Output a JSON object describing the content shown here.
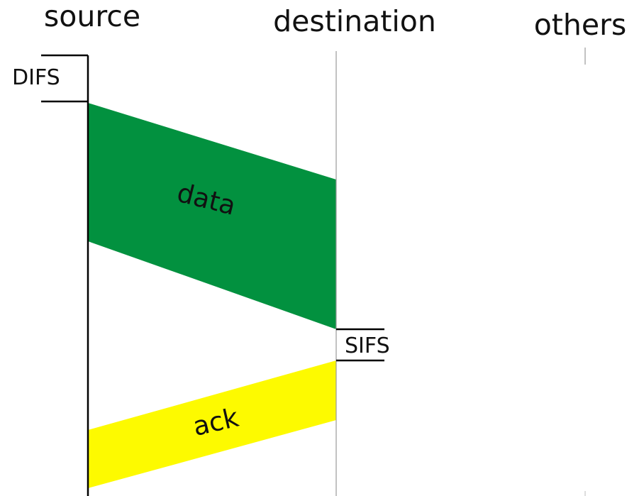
{
  "columns": {
    "source": "source",
    "destination": "destination",
    "others": "others"
  },
  "intervals": {
    "difs": "DIFS",
    "sifs": "SIFS"
  },
  "frames": {
    "data": {
      "label": "data",
      "color": "#02913f"
    },
    "ack": {
      "label": "ack",
      "color": "#fdfa00"
    }
  }
}
